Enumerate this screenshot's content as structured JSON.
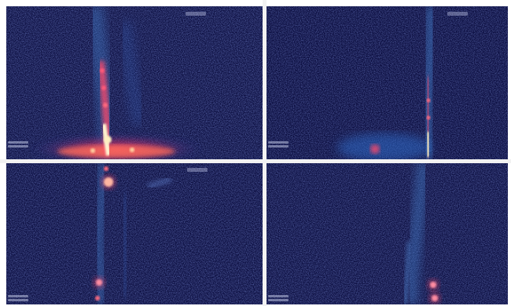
{
  "image": {
    "description_panels": [
      "panel-top-left",
      "panel-top-right",
      "panel-bottom-left",
      "panel-bottom-right"
    ],
    "colors": {
      "background": "#0b0d3f",
      "noise": "#3a4fb0",
      "plume": "#4a8fe0",
      "hot": "#ff4a6a",
      "core": "#fff4d0",
      "divider": "#f2f2f2"
    }
  }
}
